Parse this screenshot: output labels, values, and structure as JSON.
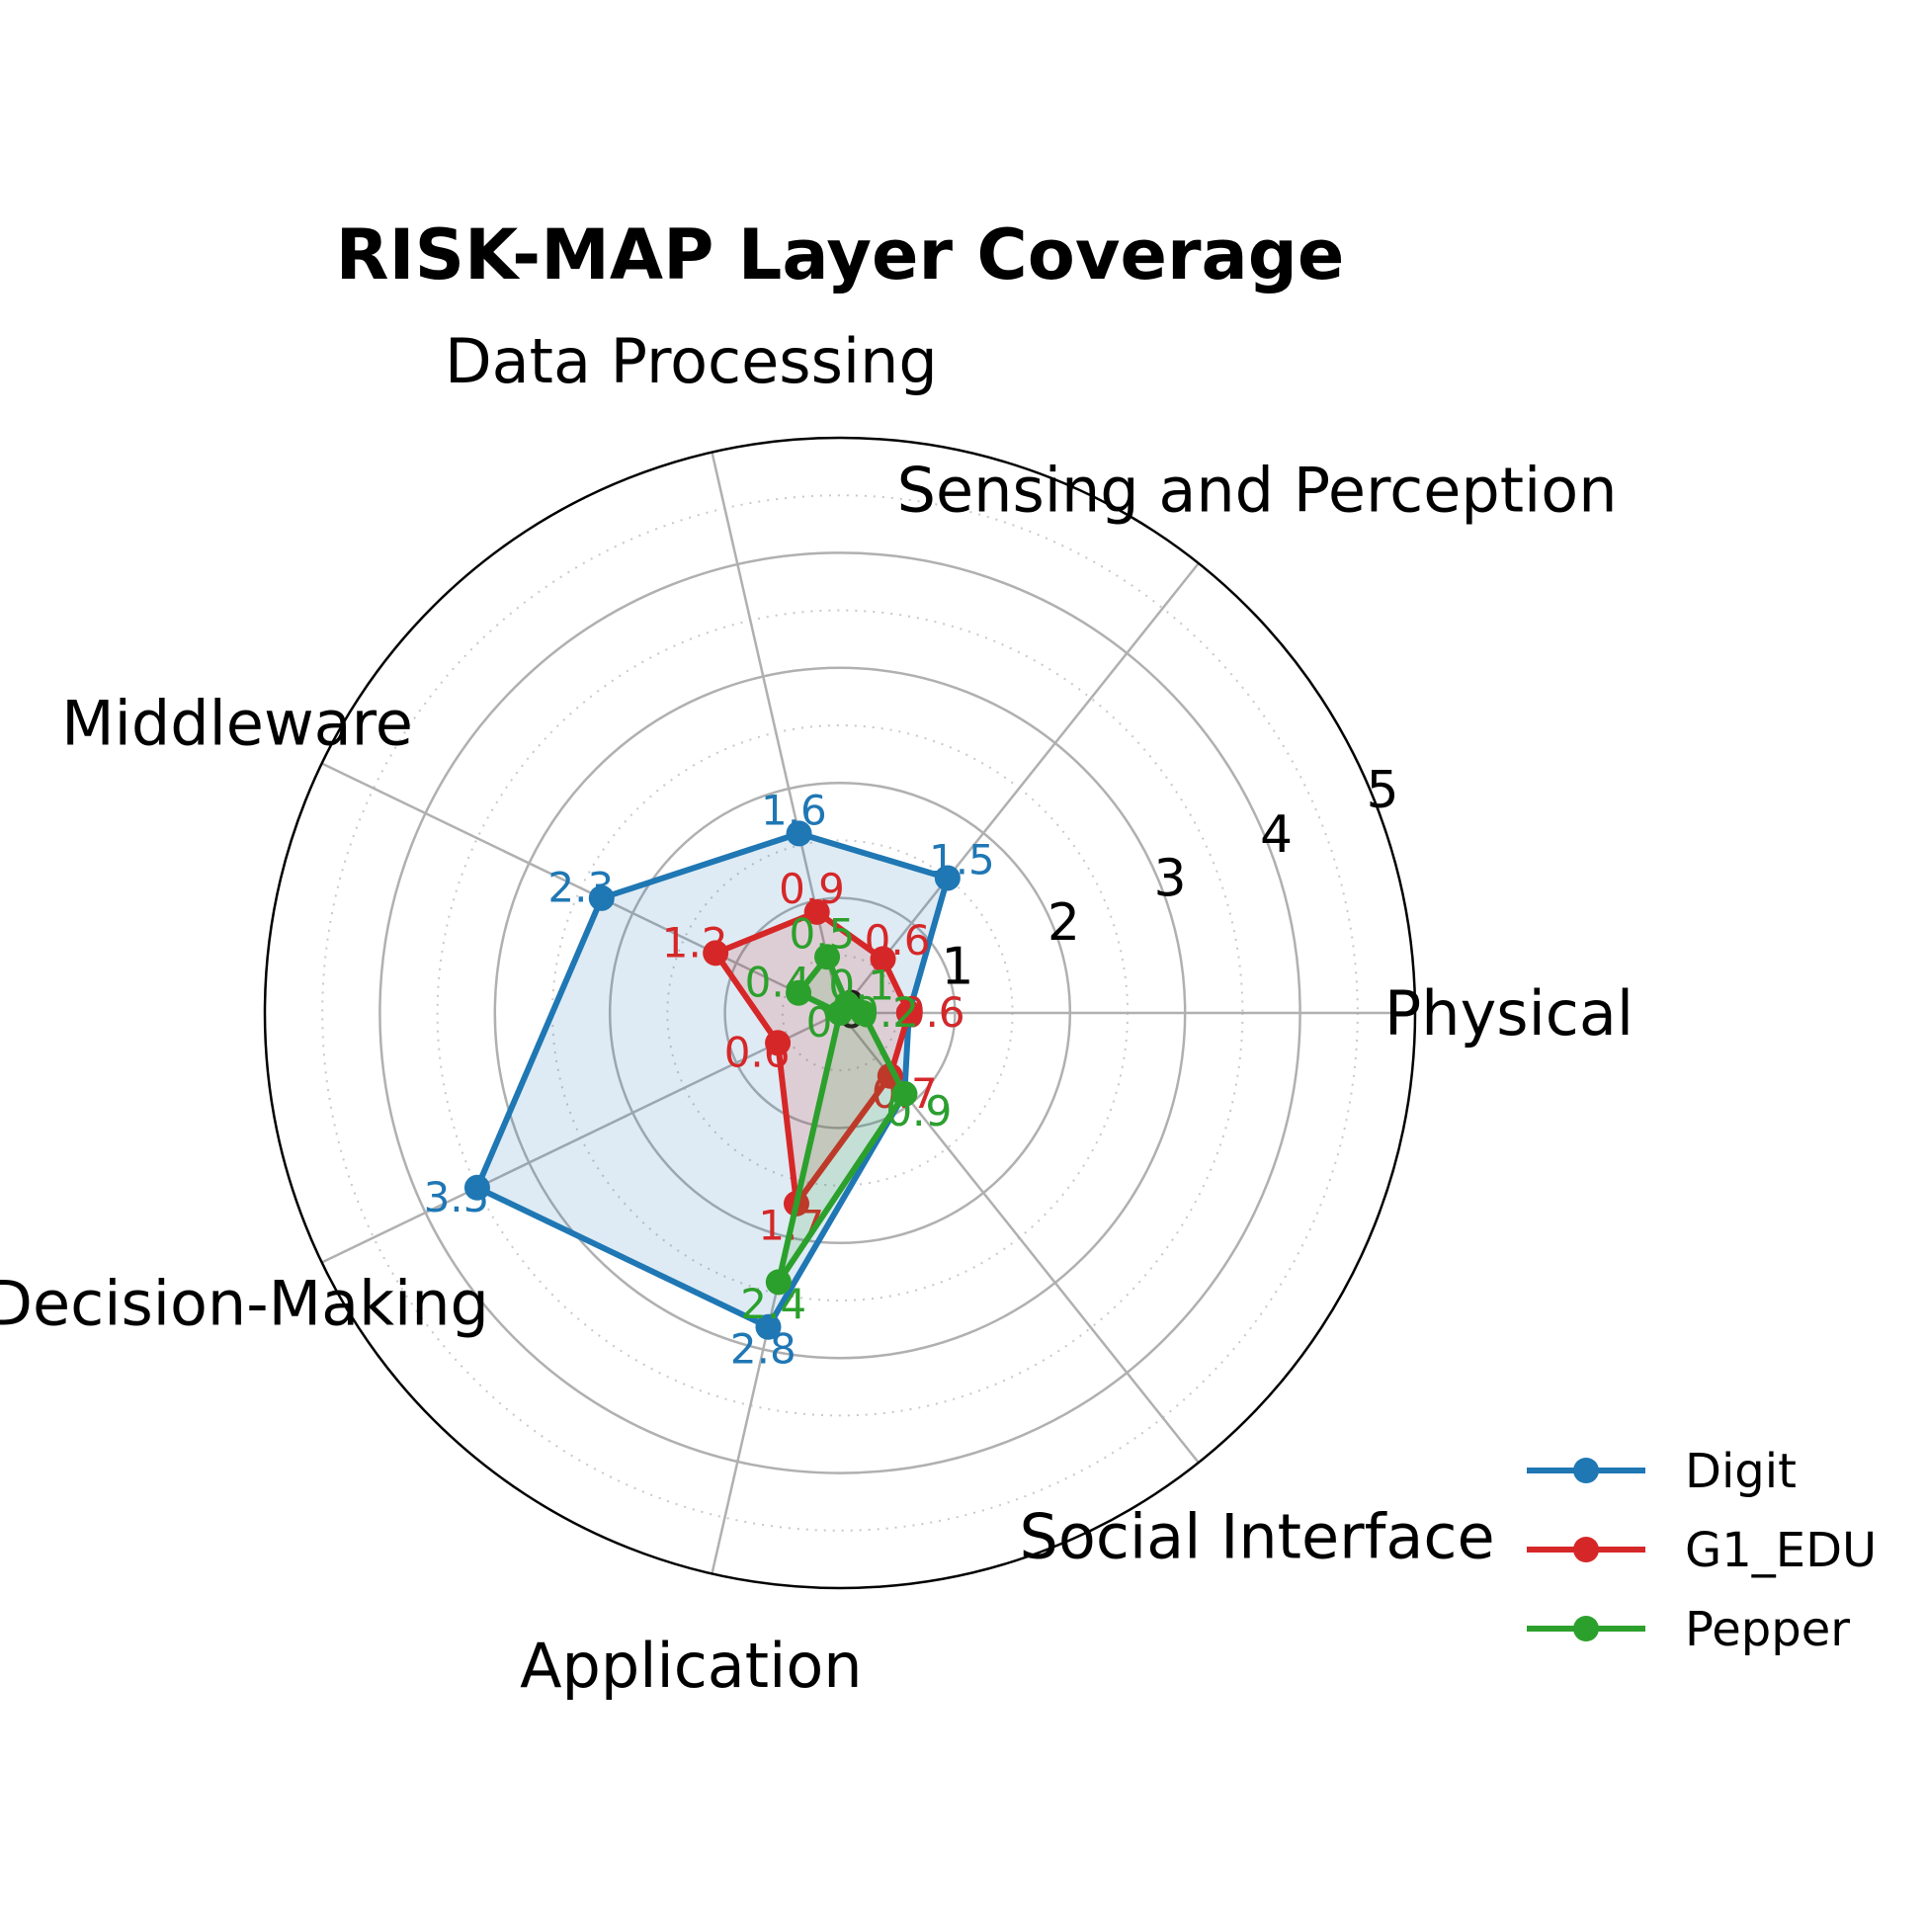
{
  "chart_data": {
    "type": "radar",
    "title": "RISK-MAP Layer Coverage",
    "axes": [
      "Physical",
      "Sensing and Perception",
      "Data Processing",
      "Middleware",
      "Decision-Making",
      "Application",
      "Social Interface"
    ],
    "rlim": [
      0,
      5
    ],
    "rticks": [
      "0",
      "1",
      "2",
      "3",
      "4",
      "5"
    ],
    "grid": true,
    "legend_position": "bottom-right",
    "series": [
      {
        "name": "Digit",
        "color": "#1f77b4",
        "values": [
          0.6,
          1.5,
          1.6,
          2.3,
          3.5,
          2.8,
          0.9
        ],
        "labels": [
          "0.6",
          "1.5",
          "1.6",
          "2.3",
          "3.5",
          "2.8",
          "0.9"
        ],
        "fill": true
      },
      {
        "name": "G1_EDU",
        "color": "#d62728",
        "values": [
          0.6,
          0.6,
          0.9,
          1.2,
          0.6,
          1.7,
          0.7
        ],
        "labels": [
          "0.6",
          "0.6",
          "0.9",
          "1.2",
          "0.6",
          "1.7",
          "0.7"
        ],
        "fill": true
      },
      {
        "name": "Pepper",
        "color": "#2ca02c",
        "values": [
          0.2,
          0.1,
          0.5,
          0.4,
          0.0,
          2.4,
          0.9
        ],
        "labels": [
          "0.2",
          "0.1",
          "0.5",
          "0.4",
          "0",
          "2.4",
          "0.9"
        ],
        "fill": true
      }
    ]
  }
}
